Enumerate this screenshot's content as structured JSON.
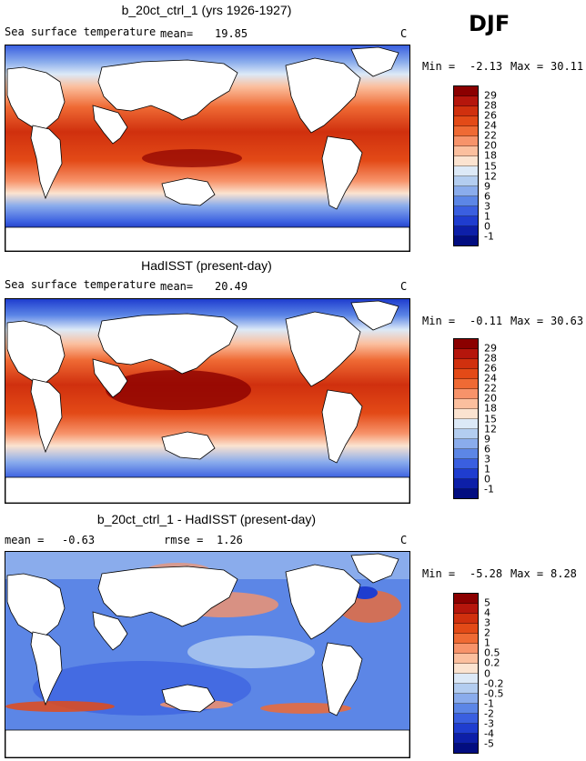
{
  "season": "DJF",
  "panels": [
    {
      "title": "b_20ct_ctrl_1 (yrs 1926-1927)",
      "left_label": "Sea surface temperature",
      "stat_label": "mean=",
      "stat_value": "19.85",
      "unit": "C",
      "min_label": "Min =",
      "min_value": "-2.13",
      "max_label": "Max =",
      "max_value": "30.11",
      "colorbar_ticks": [
        "29",
        "28",
        "26",
        "24",
        "22",
        "20",
        "18",
        "15",
        "12",
        "9",
        "6",
        "3",
        "1",
        "0",
        "-1"
      ]
    },
    {
      "title": "HadISST (present-day)",
      "left_label": "Sea surface temperature",
      "stat_label": "mean=",
      "stat_value": "20.49",
      "unit": "C",
      "min_label": "Min =",
      "min_value": "-0.11",
      "max_label": "Max =",
      "max_value": "30.63",
      "colorbar_ticks": [
        "29",
        "28",
        "26",
        "24",
        "22",
        "20",
        "18",
        "15",
        "12",
        "9",
        "6",
        "3",
        "1",
        "0",
        "-1"
      ]
    },
    {
      "title": "b_20ct_ctrl_1 - HadISST (present-day)",
      "left_label": "mean =",
      "left_value": "-0.63",
      "stat_label": "rmse =",
      "stat_value": "1.26",
      "unit": "C",
      "min_label": "Min =",
      "min_value": "-5.28",
      "max_label": "Max =",
      "max_value": "8.28",
      "colorbar_ticks": [
        "5",
        "4",
        "3",
        "2",
        "1",
        "0.5",
        "0.2",
        "0",
        "-0.2",
        "-0.5",
        "-1",
        "-2",
        "-3",
        "-4",
        "-5"
      ]
    }
  ],
  "colorbar_colors": [
    "#8b0000",
    "#b5160c",
    "#d0300e",
    "#e34a17",
    "#ef6a34",
    "#f7936a",
    "#fbbf9e",
    "#fbe3d0",
    "#dce9f7",
    "#b3cdf0",
    "#8aacec",
    "#5c86e6",
    "#3a5fe0",
    "#1f3dcf",
    "#0d1fa8",
    "#020d80"
  ],
  "legend_colors": {
    "warm_max": "#8b0000",
    "cold_min": "#020d80",
    "land": "#ffffff"
  }
}
